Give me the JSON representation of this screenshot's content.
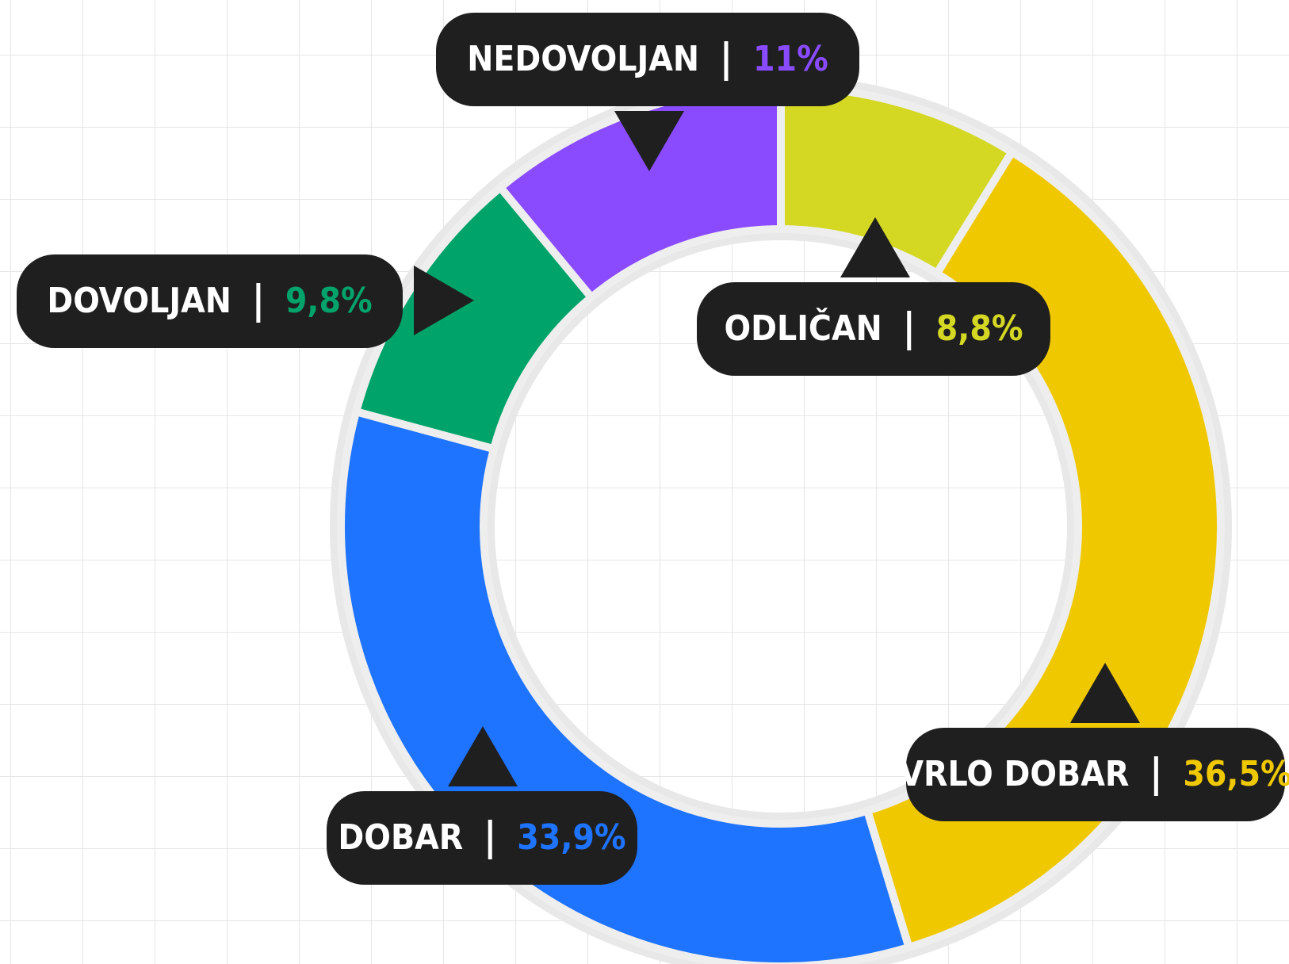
{
  "chart_data": {
    "type": "donut",
    "categories": [
      "ODLIČAN",
      "VRLO DOBAR",
      "DOBAR",
      "DOVOLJAN",
      "NEDOVOLJAN"
    ],
    "values": [
      8.8,
      36.5,
      33.9,
      9.8,
      11
    ],
    "value_labels": [
      "8,8%",
      "36,5%",
      "33,9%",
      "9,8%",
      "11%"
    ],
    "colors": [
      "#d4d822",
      "#f0c800",
      "#1e73ff",
      "#00a36a",
      "#8a4bff"
    ]
  }
}
